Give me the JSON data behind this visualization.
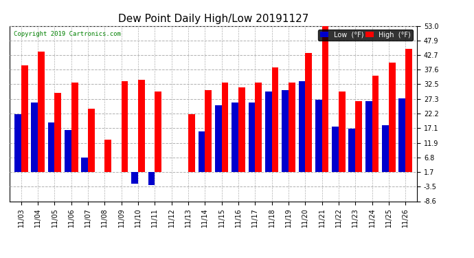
{
  "title": "Dew Point Daily High/Low 20191127",
  "copyright": "Copyright 2019 Cartronics.com",
  "background_color": "#ffffff",
  "plot_bg_color": "#ffffff",
  "bar_color_low": "#0000cc",
  "bar_color_high": "#ff0000",
  "legend_low_label": "Low  (°F)",
  "legend_high_label": "High  (°F)",
  "ylim": [
    -8.6,
    53.0
  ],
  "yticks": [
    -8.6,
    -3.5,
    1.7,
    6.8,
    11.9,
    17.1,
    22.2,
    27.3,
    32.5,
    37.6,
    42.7,
    47.9,
    53.0
  ],
  "dates": [
    "11/03",
    "11/04",
    "11/05",
    "11/06",
    "11/07",
    "11/08",
    "11/09",
    "11/10",
    "11/11",
    "11/12",
    "11/13",
    "11/14",
    "11/15",
    "11/16",
    "11/17",
    "11/18",
    "11/19",
    "11/20",
    "11/21",
    "11/22",
    "11/23",
    "11/24",
    "11/25",
    "11/26"
  ],
  "low_values": [
    22.0,
    26.0,
    19.0,
    16.5,
    6.8,
    1.7,
    1.7,
    -2.5,
    -3.0,
    1.7,
    1.7,
    16.0,
    25.0,
    26.0,
    26.0,
    30.0,
    30.5,
    33.5,
    27.0,
    17.5,
    17.0,
    26.5,
    18.0,
    27.5
  ],
  "high_values": [
    39.0,
    44.0,
    29.5,
    33.0,
    24.0,
    13.0,
    33.5,
    34.0,
    30.0,
    1.7,
    22.0,
    30.5,
    33.0,
    31.5,
    33.0,
    38.5,
    33.0,
    43.5,
    54.0,
    30.0,
    26.5,
    35.5,
    40.0,
    45.0
  ],
  "grid_color": "#b0b0b0",
  "tick_fontsize": 7,
  "title_fontsize": 11,
  "bar_width": 0.4,
  "baseline": 1.7,
  "figsize": [
    6.9,
    3.75
  ],
  "dpi": 100
}
